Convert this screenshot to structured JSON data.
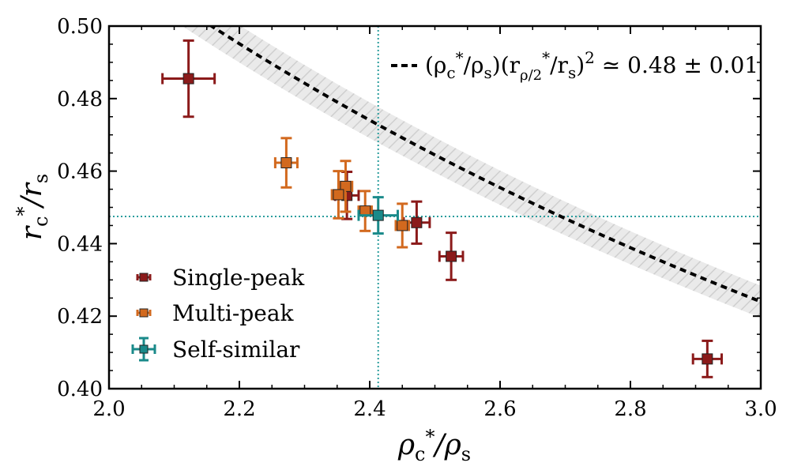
{
  "chart_data": {
    "type": "scatter",
    "xlabel": "ρc*/ρs",
    "ylabel": "rc*/rs",
    "xlim": [
      2.0,
      3.0
    ],
    "ylim": [
      0.4,
      0.5
    ],
    "xticks": [
      2.0,
      2.2,
      2.4,
      2.6,
      2.8,
      3.0
    ],
    "xtick_labels": [
      "2.0",
      "2.2",
      "2.4",
      "2.6",
      "2.8",
      "3.0"
    ],
    "yticks": [
      0.4,
      0.42,
      0.44,
      0.46,
      0.48,
      0.5
    ],
    "ytick_labels": [
      "0.40",
      "0.42",
      "0.44",
      "0.46",
      "0.48",
      "0.50"
    ],
    "fit": {
      "label": "(ρc*/ρs)(rρ/2*/rs)² ≃ 0.48 ± 0.01",
      "const": 0.48,
      "err": 0.01,
      "alpha": 0.89,
      "color": "#000000",
      "band_color": "#d9d9d9"
    },
    "reference_lines": {
      "x": 2.413,
      "y": 0.4475,
      "color": "#2a9d9d"
    },
    "series": [
      {
        "name": "Single-peak",
        "color": "#8b1a1a",
        "points": [
          {
            "x": 2.122,
            "y": 0.4855,
            "xerr": 0.04,
            "yerr": 0.0105
          },
          {
            "x": 2.365,
            "y": 0.4533,
            "xerr": 0.018,
            "yerr": 0.0065
          },
          {
            "x": 2.472,
            "y": 0.4458,
            "xerr": 0.02,
            "yerr": 0.0058
          },
          {
            "x": 2.525,
            "y": 0.4365,
            "xerr": 0.018,
            "yerr": 0.0065
          },
          {
            "x": 2.918,
            "y": 0.4082,
            "xerr": 0.022,
            "yerr": 0.005
          }
        ]
      },
      {
        "name": "Multi-peak",
        "color": "#d2691e",
        "points": [
          {
            "x": 2.272,
            "y": 0.4623,
            "xerr": 0.017,
            "yerr": 0.0068
          },
          {
            "x": 2.363,
            "y": 0.4558,
            "xerr": 0.01,
            "yerr": 0.007
          },
          {
            "x": 2.352,
            "y": 0.4535,
            "xerr": 0.01,
            "yerr": 0.0065
          },
          {
            "x": 2.393,
            "y": 0.449,
            "xerr": 0.01,
            "yerr": 0.0055
          },
          {
            "x": 2.45,
            "y": 0.445,
            "xerr": 0.01,
            "yerr": 0.006
          }
        ]
      },
      {
        "name": "Self-similar",
        "color": "#1a8a8a",
        "points": [
          {
            "x": 2.413,
            "y": 0.4478,
            "xerr": 0.03,
            "yerr": 0.005
          }
        ]
      }
    ],
    "legend": [
      {
        "label": "Single-peak",
        "color": "#8b1a1a"
      },
      {
        "label": "Multi-peak",
        "color": "#d2691e"
      },
      {
        "label": "Self-similar",
        "color": "#1a8a8a"
      }
    ],
    "legend_placement": "lower-left",
    "fit_label_placement": "top-right"
  }
}
